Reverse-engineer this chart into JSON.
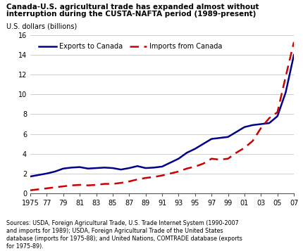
{
  "title_line1": "Canada-U.S. agricultural trade has expanded almost without",
  "title_line2": "interruption during the CUSTA-NAFTA period (1989-present)",
  "ylabel": "U.S. dollars (billions)",
  "source_text": "Sources: USDA, Foreign Agricultural Trade, U.S. Trade Internet System (1990-2007\nand imports for 1989); USDA, Foreign Agricultural Trade of the United States\ndatabase (imports for 1975-88); and United Nations, COMTRADE database (exports\nfor 1975-89).",
  "exports_years": [
    1975,
    1976,
    1977,
    1978,
    1979,
    1980,
    1981,
    1982,
    1983,
    1984,
    1985,
    1986,
    1987,
    1988,
    1989,
    1990,
    1991,
    1992,
    1993,
    1994,
    1995,
    1996,
    1997,
    1998,
    1999,
    2000,
    2001,
    2002,
    2003,
    2004,
    2005,
    2006,
    2007
  ],
  "exports_vals": [
    1.7,
    1.85,
    2.0,
    2.2,
    2.5,
    2.6,
    2.65,
    2.5,
    2.55,
    2.6,
    2.55,
    2.4,
    2.55,
    2.75,
    2.55,
    2.6,
    2.7,
    3.1,
    3.5,
    4.1,
    4.5,
    5.0,
    5.5,
    5.6,
    5.7,
    6.2,
    6.7,
    6.9,
    7.0,
    7.1,
    7.8,
    10.2,
    14.0
  ],
  "imports_years": [
    1975,
    1976,
    1977,
    1978,
    1979,
    1980,
    1981,
    1982,
    1983,
    1984,
    1985,
    1986,
    1987,
    1988,
    1989,
    1990,
    1991,
    1992,
    1993,
    1994,
    1995,
    1996,
    1997,
    1998,
    1999,
    2000,
    2001,
    2002,
    2003,
    2004,
    2005,
    2006,
    2007
  ],
  "imports_vals": [
    0.3,
    0.4,
    0.5,
    0.6,
    0.7,
    0.8,
    0.85,
    0.8,
    0.85,
    0.95,
    0.95,
    1.05,
    1.2,
    1.4,
    1.55,
    1.65,
    1.8,
    2.0,
    2.2,
    2.5,
    2.7,
    3.0,
    3.5,
    3.4,
    3.5,
    4.1,
    4.6,
    5.3,
    6.6,
    7.6,
    8.2,
    11.8,
    15.3
  ],
  "exports_color": "#00008B",
  "imports_color": "#CC0000",
  "ylim": [
    0,
    16
  ],
  "yticks": [
    0,
    2,
    4,
    6,
    8,
    10,
    12,
    14,
    16
  ],
  "xtick_labels": [
    "1975",
    "77",
    "79",
    "81",
    "83",
    "85",
    "87",
    "89",
    "91",
    "93",
    "95",
    "97",
    "99",
    "01",
    "03",
    "05",
    "07"
  ],
  "xtick_values": [
    1975,
    1977,
    1979,
    1981,
    1983,
    1985,
    1987,
    1989,
    1991,
    1993,
    1995,
    1997,
    1999,
    2001,
    2003,
    2005,
    2007
  ],
  "legend_exports": "Exports to Canada",
  "legend_imports": "Imports from Canada",
  "background_color": "#FFFFFF"
}
